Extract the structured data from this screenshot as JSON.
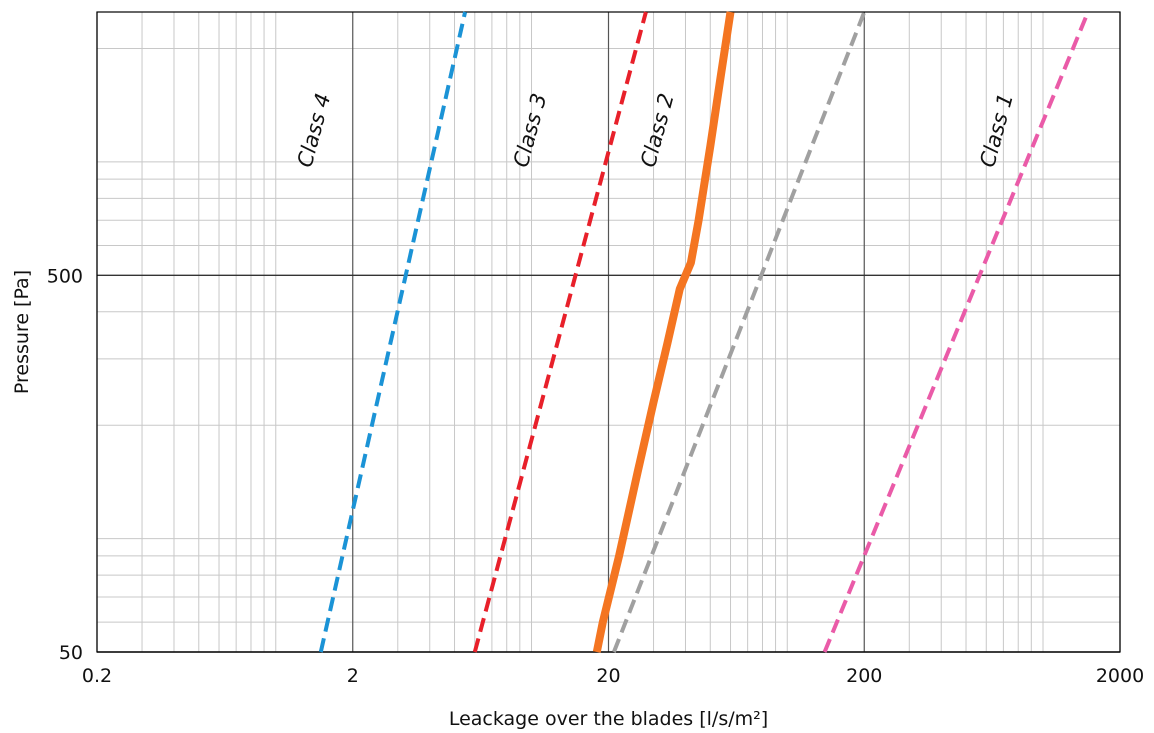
{
  "chart_data": {
    "type": "line",
    "title": "",
    "xlabel": "Leackage over the blades [l/s/m²]",
    "ylabel": "Pressure [Pa]",
    "x_scale": "log",
    "y_scale": "log",
    "xlim": [
      0.2,
      2000
    ],
    "ylim": [
      50,
      2500
    ],
    "x_ticks": [
      "0.2",
      "2",
      "20",
      "200",
      "2000"
    ],
    "y_ticks": [
      "50",
      "500"
    ],
    "grid": true,
    "series": [
      {
        "name": "Class 4",
        "color": "#1b93d6",
        "style": "dashed",
        "points": [
          [
            1.5,
            50
          ],
          [
            5.5,
            2500
          ]
        ]
      },
      {
        "name": "Class 3",
        "color": "#e8202a",
        "style": "dashed",
        "points": [
          [
            6.0,
            50
          ],
          [
            28,
            2500
          ]
        ]
      },
      {
        "name": "",
        "color": "#f47521",
        "style": "solid",
        "points": [
          [
            18,
            50
          ],
          [
            19,
            60
          ],
          [
            22,
            90
          ],
          [
            26,
            150
          ],
          [
            30,
            230
          ],
          [
            34,
            330
          ],
          [
            38,
            460
          ],
          [
            42,
            540
          ],
          [
            45,
            700
          ],
          [
            50,
            1100
          ],
          [
            55,
            1700
          ],
          [
            60,
            2500
          ]
        ]
      },
      {
        "name": "",
        "color": "#a0a0a0",
        "style": "dashed",
        "points": [
          [
            21,
            50
          ],
          [
            200,
            2500
          ]
        ]
      },
      {
        "name": "Class 1",
        "color": "#ea5ba8",
        "style": "dashed",
        "points": [
          [
            140,
            50
          ],
          [
            1500,
            2500
          ]
        ]
      }
    ],
    "annotations": [
      {
        "text": "Class 4",
        "series": 0
      },
      {
        "text": "Class 3",
        "series": 1
      },
      {
        "text": "Class 2",
        "series": 2
      },
      {
        "text": "Class 1",
        "series": 4
      }
    ]
  }
}
